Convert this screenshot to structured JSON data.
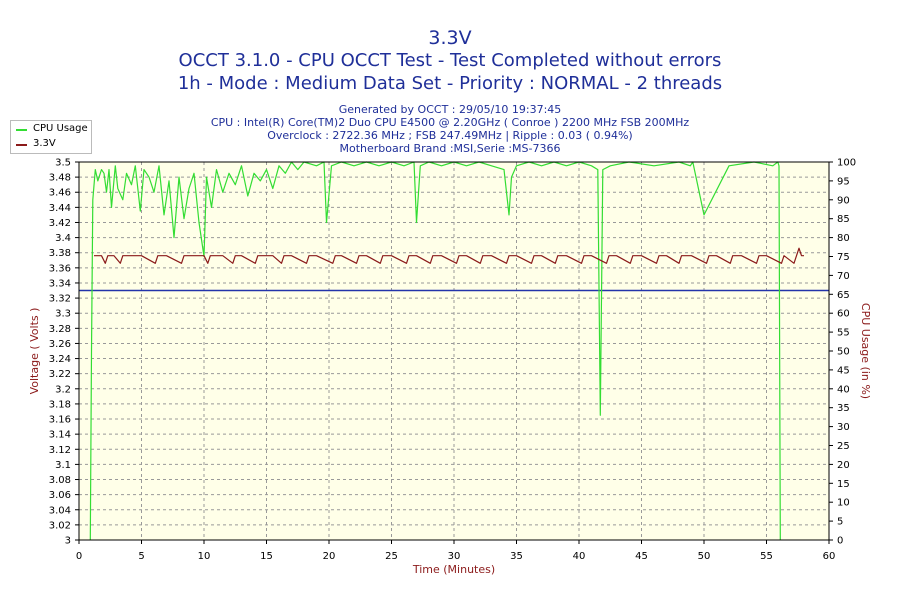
{
  "chart_data": {
    "type": "line",
    "title": "3.3V",
    "subtitle_lines": [
      "OCCT 3.1.0 - CPU OCCT Test - Test Completed without errors",
      "1h - Mode : Medium Data Set - Priority : NORMAL - 2 threads"
    ],
    "info_lines": [
      "Generated by OCCT : 29/05/10 19:37:45",
      "CPU : Intel(R) Core(TM)2 Duo CPU E4500 @ 2.20GHz ( Conroe ) 2200 MHz FSB 200MHz",
      "Overclock : 2722.36 MHz ; FSB 247.49MHz | Ripple : 0.03 ( 0.94%)",
      "Motherboard Brand :MSI,Serie :MS-7366"
    ],
    "xlabel": "Time (Minutes)",
    "ylabel_left": "Voltage ( Volts )",
    "ylabel_right": "CPU Usage (in %)",
    "xlim": [
      0,
      60
    ],
    "ylim_left": [
      3.0,
      3.5
    ],
    "ylim_right": [
      0,
      100
    ],
    "x_ticks": [
      0,
      5,
      10,
      15,
      20,
      25,
      30,
      35,
      40,
      45,
      50,
      55,
      60
    ],
    "y_ticks_left": [
      "3",
      "3.02",
      "3.04",
      "3.06",
      "3.08",
      "3.1",
      "3.12",
      "3.14",
      "3.16",
      "3.18",
      "3.2",
      "3.22",
      "3.24",
      "3.26",
      "3.28",
      "3.3",
      "3.32",
      "3.34",
      "3.36",
      "3.38",
      "3.4",
      "3.42",
      "3.44",
      "3.46",
      "3.48",
      "3.5"
    ],
    "y_ticks_right": [
      0,
      5,
      10,
      15,
      20,
      25,
      30,
      35,
      40,
      45,
      50,
      55,
      60,
      65,
      70,
      75,
      80,
      85,
      90,
      95,
      100
    ],
    "grid": true,
    "legend_position": "top-left",
    "series": [
      {
        "name": "CPU Usage",
        "axis": "right",
        "color": "#33dd33",
        "x": [
          0.9,
          1.0,
          1.1,
          1.3,
          1.5,
          1.8,
          2.0,
          2.2,
          2.4,
          2.6,
          2.9,
          3.1,
          3.5,
          3.8,
          4.2,
          4.5,
          4.9,
          5.2,
          5.6,
          6.0,
          6.4,
          6.8,
          7.2,
          7.6,
          8.0,
          8.4,
          8.8,
          9.2,
          9.6,
          10.0,
          10.2,
          10.6,
          11.0,
          11.5,
          12.0,
          12.5,
          13.0,
          13.5,
          14.0,
          14.5,
          15.0,
          15.5,
          16.0,
          16.5,
          17.0,
          17.5,
          18.0,
          19.0,
          19.6,
          19.8,
          20.2,
          21.0,
          22.0,
          23.0,
          24.0,
          25.0,
          26.0,
          26.8,
          27.0,
          27.3,
          28.0,
          29.0,
          30.0,
          31.0,
          32.0,
          33.0,
          34.0,
          34.4,
          34.6,
          35.0,
          36.0,
          37.0,
          38.0,
          39.0,
          40.0,
          41.0,
          41.5,
          41.7,
          41.9,
          42.5,
          44.0,
          46.0,
          48.0,
          48.9,
          49.1,
          50.0,
          52.0,
          54.0,
          55.5,
          55.9,
          56.0,
          56.1
        ],
        "values": [
          0,
          50,
          90,
          98,
          95,
          98,
          97,
          92,
          98,
          88,
          99,
          93,
          90,
          97,
          94,
          99,
          87,
          98,
          96,
          92,
          99,
          86,
          95,
          80,
          96,
          85,
          93,
          97,
          84,
          75,
          96,
          88,
          98,
          92,
          97,
          94,
          99,
          91,
          97,
          95,
          98,
          93,
          99,
          97,
          100,
          98,
          100,
          99,
          100,
          84,
          99,
          100,
          99,
          100,
          99,
          100,
          99,
          100,
          84,
          99,
          100,
          99,
          100,
          99,
          100,
          99,
          98,
          86,
          96,
          99,
          100,
          99,
          100,
          99,
          100,
          99,
          98,
          33,
          98,
          99,
          100,
          99,
          100,
          99,
          100,
          86,
          99,
          100,
          99,
          100,
          99,
          0
        ]
      },
      {
        "name": "3.3V",
        "axis": "left",
        "color": "#8b1a1a",
        "x": [
          1.2,
          1.8,
          2.1,
          2.3,
          2.8,
          3.3,
          3.5,
          3.8,
          5.0,
          6.1,
          6.3,
          7.0,
          8.2,
          8.4,
          10.0,
          10.3,
          10.5,
          11.5,
          12.3,
          12.5,
          13.0,
          14.1,
          14.3,
          15.5,
          16.2,
          16.4,
          17.0,
          18.2,
          18.4,
          19.0,
          20.3,
          20.5,
          21.0,
          22.2,
          22.4,
          23.0,
          24.1,
          24.3,
          25.0,
          26.2,
          26.4,
          27.0,
          28.1,
          28.3,
          29.0,
          30.2,
          30.4,
          31.0,
          32.1,
          32.3,
          33.0,
          34.2,
          34.4,
          35.0,
          36.2,
          36.4,
          37.0,
          38.1,
          38.3,
          39.0,
          40.2,
          40.4,
          41.0,
          42.2,
          42.4,
          43.0,
          44.1,
          44.3,
          45.0,
          46.2,
          46.4,
          47.0,
          48.0,
          48.2,
          49.0,
          50.2,
          50.4,
          51.0,
          52.1,
          52.3,
          53.0,
          54.2,
          54.4,
          55.0,
          56.2,
          56.4,
          57.2,
          57.4,
          57.6,
          57.8,
          58.0
        ],
        "values": [
          3.376,
          3.376,
          3.366,
          3.376,
          3.376,
          3.366,
          3.376,
          3.376,
          3.376,
          3.366,
          3.376,
          3.376,
          3.366,
          3.376,
          3.376,
          3.366,
          3.376,
          3.376,
          3.366,
          3.376,
          3.376,
          3.366,
          3.376,
          3.376,
          3.366,
          3.376,
          3.376,
          3.366,
          3.376,
          3.376,
          3.366,
          3.376,
          3.376,
          3.366,
          3.376,
          3.376,
          3.366,
          3.376,
          3.376,
          3.366,
          3.376,
          3.376,
          3.366,
          3.376,
          3.376,
          3.366,
          3.376,
          3.376,
          3.366,
          3.376,
          3.376,
          3.366,
          3.376,
          3.376,
          3.366,
          3.376,
          3.376,
          3.366,
          3.376,
          3.376,
          3.366,
          3.376,
          3.376,
          3.366,
          3.376,
          3.376,
          3.366,
          3.376,
          3.376,
          3.366,
          3.376,
          3.376,
          3.366,
          3.376,
          3.376,
          3.366,
          3.376,
          3.376,
          3.366,
          3.376,
          3.376,
          3.366,
          3.376,
          3.376,
          3.366,
          3.376,
          3.366,
          3.376,
          3.386,
          3.376,
          3.376
        ]
      }
    ],
    "reference_line": {
      "axis": "left",
      "value": 3.33,
      "color": "#2233aa"
    },
    "plot_background": "#ffffe8",
    "page_background": "#ffffff"
  }
}
